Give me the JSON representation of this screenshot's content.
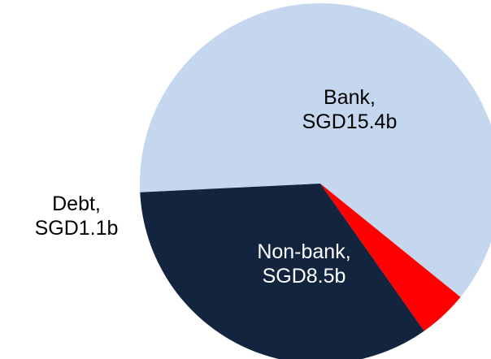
{
  "chart_data": {
    "type": "pie",
    "slices": [
      {
        "label": "Bank",
        "value_text": "SGD15.4b",
        "value": 15.4,
        "color": "#c5d7ef",
        "text_color": "#000000"
      },
      {
        "label": "Non-bank",
        "value_text": "SGD8.5b",
        "value": 8.5,
        "color": "#13243f",
        "text_color": "#ffffff"
      },
      {
        "label": "Debt",
        "value_text": "SGD1.1b",
        "value": 1.1,
        "color": "#ff0000",
        "text_color": "#000000"
      }
    ],
    "legend": "none"
  }
}
